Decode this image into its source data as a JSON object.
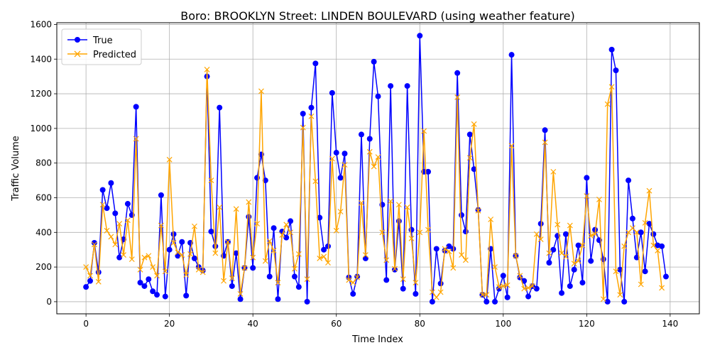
{
  "chart_data": {
    "type": "line",
    "title": "Boro: BROOKLYN Street: LINDEN BOULEVARD (using weather feature)",
    "xlabel": "Time Index",
    "ylabel": "Traffic Volume",
    "xlim": [
      -7,
      147
    ],
    "ylim": [
      -70,
      1610
    ],
    "xticks": [
      0,
      20,
      40,
      60,
      80,
      100,
      120,
      140
    ],
    "yticks": [
      0,
      200,
      400,
      600,
      800,
      1000,
      1200,
      1400,
      1600
    ],
    "grid": true,
    "legend": "upper-left",
    "series": [
      {
        "name": "True",
        "color": "#0000ff",
        "marker": "circle",
        "values": [
          85,
          120,
          340,
          170,
          645,
          540,
          685,
          510,
          255,
          360,
          565,
          500,
          1125,
          110,
          90,
          130,
          60,
          40,
          615,
          30,
          300,
          390,
          265,
          345,
          35,
          340,
          250,
          200,
          180,
          1300,
          405,
          320,
          1120,
          265,
          345,
          90,
          280,
          15,
          195,
          490,
          195,
          715,
          850,
          700,
          145,
          425,
          15,
          405,
          370,
          465,
          145,
          85,
          1085,
          0,
          1120,
          1375,
          485,
          300,
          320,
          1205,
          860,
          715,
          855,
          140,
          45,
          145,
          965,
          250,
          940,
          1385,
          1185,
          560,
          125,
          1245,
          185,
          465,
          75,
          1245,
          415,
          45,
          1535,
          750,
          750,
          0,
          305,
          105,
          295,
          320,
          305,
          1320,
          500,
          405,
          965,
          765,
          530,
          40,
          0,
          305,
          0,
          75,
          150,
          25,
          1425,
          265,
          140,
          120,
          30,
          90,
          75,
          450,
          990,
          225,
          300,
          380,
          50,
          390,
          90,
          185,
          325,
          110,
          715,
          235,
          415,
          355,
          245,
          0,
          1455,
          1335,
          185,
          0,
          700,
          480,
          255,
          400,
          175,
          450,
          390,
          325,
          320,
          145
        ]
      },
      {
        "name": "Predicted",
        "color": "#ffa500",
        "marker": "x",
        "values": [
          200,
          150,
          330,
          115,
          560,
          410,
          375,
          330,
          450,
          270,
          470,
          245,
          940,
          185,
          255,
          265,
          200,
          150,
          440,
          175,
          820,
          340,
          285,
          270,
          155,
          275,
          435,
          185,
          170,
          1340,
          700,
          280,
          545,
          120,
          345,
          135,
          535,
          45,
          195,
          575,
          255,
          450,
          1215,
          235,
          350,
          295,
          110,
          385,
          445,
          400,
          190,
          275,
          1005,
          130,
          1070,
          695,
          250,
          260,
          225,
          825,
          410,
          520,
          790,
          125,
          110,
          140,
          570,
          270,
          865,
          780,
          835,
          400,
          240,
          580,
          190,
          560,
          130,
          545,
          365,
          110,
          400,
          985,
          415,
          55,
          25,
          55,
          305,
          290,
          195,
          1180,
          270,
          240,
          830,
          1025,
          525,
          40,
          40,
          475,
          200,
          85,
          90,
          95,
          900,
          265,
          150,
          75,
          80,
          90,
          390,
          360,
          920,
          280,
          750,
          445,
          280,
          260,
          440,
          220,
          235,
          325,
          610,
          380,
          390,
          590,
          15,
          1140,
          1240,
          175,
          40,
          320,
          400,
          425,
          400,
          100,
          455,
          640,
          325,
          295,
          80
        ]
      }
    ]
  }
}
